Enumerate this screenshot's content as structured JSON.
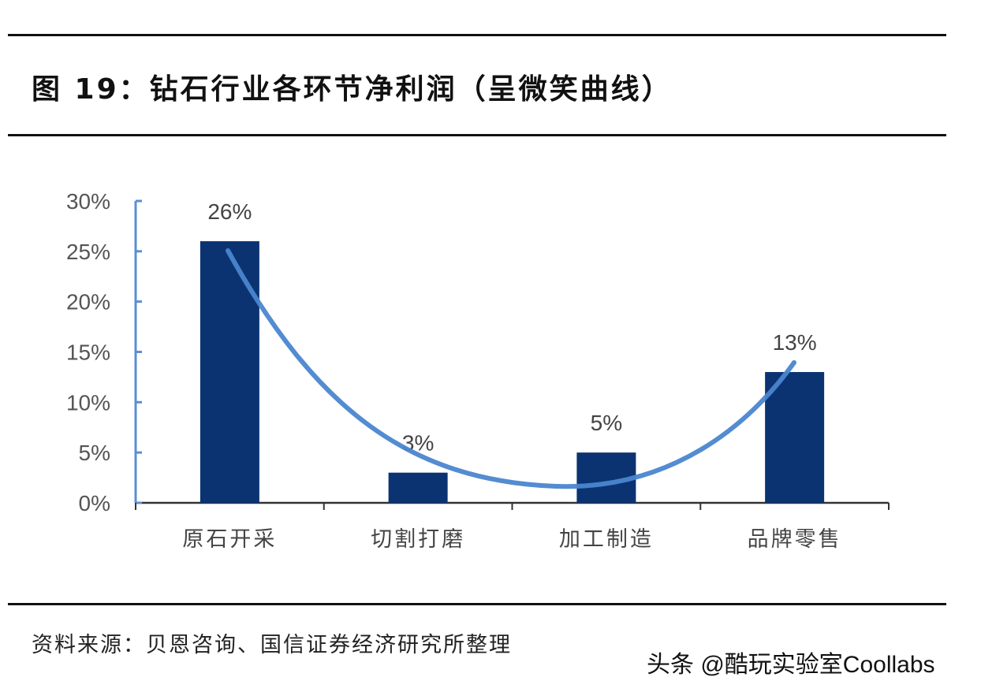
{
  "title": "图 19：钻石行业各环节净利润（呈微笑曲线）",
  "source": "资料来源：贝恩咨询、国信证券经济研究所整理",
  "watermark": "头条 @酷玩实验室Coollabs",
  "chart_data": {
    "type": "bar",
    "title": "图 19：钻石行业各环节净利润（呈微笑曲线）",
    "categories": [
      "原石开采",
      "切割打磨",
      "加工制造",
      "品牌零售"
    ],
    "values": [
      26,
      3,
      5,
      13
    ],
    "data_labels": [
      "26%",
      "3%",
      "5%",
      "13%"
    ],
    "ylim": [
      0,
      30
    ],
    "yticks": [
      0,
      5,
      10,
      15,
      20,
      25,
      30
    ],
    "ytick_labels": [
      "0%",
      "5%",
      "10%",
      "15%",
      "20%",
      "25%",
      "30%"
    ],
    "xlabel": "",
    "ylabel": "",
    "grid": false,
    "trend_curve": true,
    "colors": {
      "bar": "#0b3372",
      "axis": "#5b8ed6",
      "curve": "#4a86cf"
    }
  }
}
